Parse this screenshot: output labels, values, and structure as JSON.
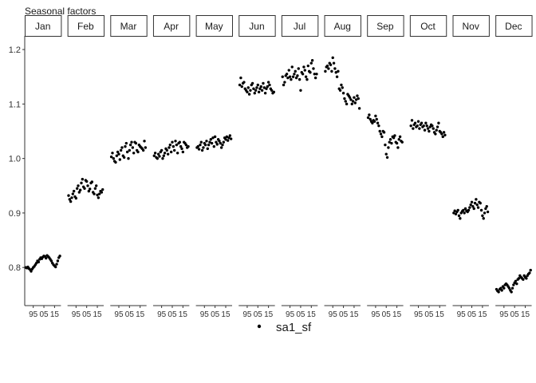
{
  "chart_data": {
    "type": "scatter",
    "title": "Seasonal factors",
    "facet_by": "month",
    "panels": [
      "Jan",
      "Feb",
      "Mar",
      "Apr",
      "May",
      "Jun",
      "Jul",
      "Aug",
      "Sep",
      "Oct",
      "Nov",
      "Dec"
    ],
    "x_ticks": [
      "95",
      "05",
      "15"
    ],
    "x_tick_values": [
      1995,
      2005,
      2015
    ],
    "xlim": [
      1987,
      2021
    ],
    "ylim": [
      0.73,
      1.225
    ],
    "y_ticks": [
      0.8,
      0.9,
      1.0,
      1.1,
      1.2
    ],
    "y_tick_labels": [
      "0.8",
      "0.9",
      "1.0",
      "1.1",
      "1.2"
    ],
    "grid": false,
    "legend_position": "bottom",
    "series": [
      {
        "name": "sa1_sf",
        "color": "#000000",
        "x": [
          1988,
          1989,
          1990,
          1991,
          1992,
          1993,
          1994,
          1995,
          1996,
          1997,
          1998,
          1999,
          2000,
          2001,
          2002,
          2003,
          2004,
          2005,
          2006,
          2007,
          2008,
          2009,
          2010,
          2011,
          2012,
          2013,
          2014,
          2015,
          2016,
          2017,
          2018,
          2019,
          2020
        ],
        "values_by_panel": {
          "Jan": [
            0.8,
            0.799,
            0.801,
            0.798,
            0.796,
            0.793,
            0.797,
            0.8,
            0.802,
            0.805,
            0.808,
            0.812,
            0.81,
            0.815,
            0.818,
            0.816,
            0.819,
            0.821,
            0.82,
            0.817,
            0.822,
            0.82,
            0.818,
            0.815,
            0.812,
            0.808,
            0.805,
            0.803,
            0.801,
            0.806,
            0.812,
            0.818,
            0.821
          ],
          "Feb": [
            0.932,
            0.925,
            0.921,
            0.928,
            0.935,
            0.94,
            0.93,
            0.927,
            0.945,
            0.95,
            0.938,
            0.942,
            0.955,
            0.962,
            0.948,
            0.945,
            0.96,
            0.958,
            0.95,
            0.94,
            0.944,
            0.955,
            0.957,
            0.938,
            0.935,
            0.945,
            0.95,
            0.933,
            0.928,
            0.935,
            0.94,
            0.938,
            0.943
          ],
          "Mar": [
            1.003,
            1.01,
            1.0,
            0.995,
            0.993,
            1.005,
            1.012,
            1.008,
            0.998,
            1.015,
            1.02,
            1.005,
            1.002,
            1.022,
            1.028,
            1.012,
            1.0,
            1.015,
            1.025,
            1.03,
            1.02,
            1.01,
            1.03,
            1.028,
            1.015,
            1.012,
            1.025,
            1.022,
            1.02,
            1.018,
            1.015,
            1.032,
            1.02
          ],
          "Apr": [
            1.005,
            1.01,
            1.002,
            1.0,
            1.008,
            1.004,
            1.012,
            1.015,
            1.0,
            1.005,
            1.01,
            1.018,
            1.015,
            1.008,
            1.02,
            1.025,
            1.012,
            1.03,
            1.022,
            1.015,
            1.032,
            1.025,
            1.01,
            1.028,
            1.03,
            1.022,
            1.018,
            1.012,
            1.03,
            1.028,
            1.025,
            1.02,
            1.022
          ],
          "May": [
            1.02,
            1.022,
            1.017,
            1.025,
            1.03,
            1.015,
            1.02,
            1.028,
            1.025,
            1.032,
            1.018,
            1.025,
            1.03,
            1.035,
            1.028,
            1.038,
            1.022,
            1.04,
            1.03,
            1.026,
            1.035,
            1.032,
            1.028,
            1.02,
            1.025,
            1.03,
            1.038,
            1.035,
            1.04,
            1.033,
            1.038,
            1.042,
            1.036
          ],
          "Jun": [
            1.135,
            1.148,
            1.132,
            1.138,
            1.14,
            1.128,
            1.125,
            1.122,
            1.13,
            1.118,
            1.125,
            1.135,
            1.138,
            1.128,
            1.12,
            1.125,
            1.13,
            1.135,
            1.122,
            1.128,
            1.132,
            1.125,
            1.138,
            1.13,
            1.12,
            1.128,
            1.132,
            1.14,
            1.135,
            1.128,
            1.125,
            1.12,
            1.122
          ],
          "Jul": [
            1.15,
            1.135,
            1.14,
            1.152,
            1.155,
            1.148,
            1.162,
            1.15,
            1.145,
            1.168,
            1.15,
            1.155,
            1.16,
            1.148,
            1.152,
            1.165,
            1.145,
            1.125,
            1.158,
            1.155,
            1.168,
            1.162,
            1.15,
            1.145,
            1.17,
            1.16,
            1.158,
            1.175,
            1.18,
            1.165,
            1.155,
            1.148,
            1.155
          ],
          "Aug": [
            1.16,
            1.168,
            1.17,
            1.165,
            1.175,
            1.172,
            1.16,
            1.185,
            1.175,
            1.165,
            1.158,
            1.15,
            1.16,
            1.128,
            1.125,
            1.135,
            1.13,
            1.12,
            1.11,
            1.105,
            1.1,
            1.118,
            1.115,
            1.112,
            1.108,
            1.1,
            1.105,
            1.112,
            1.102,
            1.108,
            1.115,
            1.11,
            1.092
          ],
          "Sep": [
            1.075,
            1.08,
            1.072,
            1.068,
            1.065,
            1.07,
            1.068,
            1.078,
            1.072,
            1.065,
            1.06,
            1.05,
            1.045,
            1.04,
            1.05,
            1.048,
            1.025,
            1.008,
            1.002,
            1.02,
            1.03,
            1.035,
            1.028,
            1.04,
            1.038,
            1.042,
            1.03,
            1.028,
            1.02,
            1.035,
            1.04,
            1.032,
            1.03
          ],
          "Oct": [
            1.06,
            1.07,
            1.055,
            1.062,
            1.065,
            1.058,
            1.06,
            1.068,
            1.055,
            1.062,
            1.065,
            1.058,
            1.06,
            1.052,
            1.065,
            1.06,
            1.055,
            1.05,
            1.058,
            1.062,
            1.06,
            1.055,
            1.048,
            1.045,
            1.052,
            1.058,
            1.065,
            1.05,
            1.048,
            1.045,
            1.04,
            1.048,
            1.043
          ],
          "Nov": [
            0.9,
            0.904,
            0.898,
            0.902,
            0.905,
            0.895,
            0.89,
            0.9,
            0.903,
            0.905,
            0.9,
            0.908,
            0.904,
            0.902,
            0.905,
            0.91,
            0.915,
            0.92,
            0.912,
            0.908,
            0.918,
            0.925,
            0.915,
            0.91,
            0.92,
            0.918,
            0.905,
            0.895,
            0.89,
            0.9,
            0.908,
            0.912,
            0.902
          ],
          "Dec": [
            0.76,
            0.757,
            0.755,
            0.76,
            0.762,
            0.758,
            0.765,
            0.762,
            0.768,
            0.77,
            0.768,
            0.765,
            0.762,
            0.758,
            0.755,
            0.762,
            0.768,
            0.772,
            0.775,
            0.77,
            0.778,
            0.78,
            0.785,
            0.782,
            0.78,
            0.778,
            0.785,
            0.782,
            0.78,
            0.785,
            0.788,
            0.79,
            0.795
          ]
        }
      }
    ]
  }
}
